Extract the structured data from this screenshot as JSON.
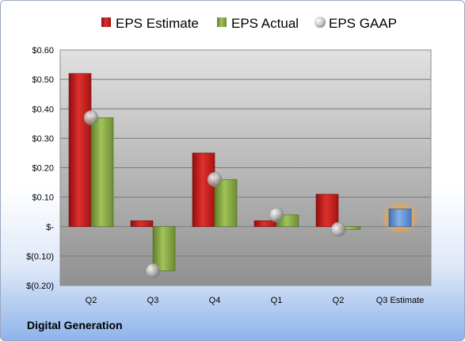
{
  "company_name": "Digital Generation",
  "colors": {
    "estimate": "#cc1f1f",
    "actual": "#8fb24a",
    "gaap": "#bcbcbc",
    "future_estimate": "#6f9bd8",
    "highlight": "#f3a64a"
  },
  "chart_data": {
    "type": "bar",
    "categories": [
      "Q2",
      "Q3",
      "Q4",
      "Q1",
      "Q2",
      "Q3 Estimate"
    ],
    "series": [
      {
        "name": "EPS Estimate",
        "values": [
          0.52,
          0.02,
          0.25,
          0.02,
          0.11,
          0.06
        ]
      },
      {
        "name": "EPS Actual",
        "values": [
          0.37,
          -0.15,
          0.16,
          0.04,
          -0.01,
          null
        ]
      },
      {
        "name": "EPS GAAP",
        "values": [
          0.37,
          -0.15,
          0.16,
          0.04,
          -0.01,
          null
        ]
      }
    ],
    "ylim": [
      -0.2,
      0.6
    ],
    "yticks": [
      0.6,
      0.5,
      0.4,
      0.3,
      0.2,
      0.1,
      0,
      -0.1,
      -0.2
    ],
    "ytick_labels": [
      "$0.60",
      "$0.50",
      "$0.40",
      "$0.30",
      "$0.20",
      "$0.10",
      "$-",
      "$(0.10)",
      "$(0.20)"
    ],
    "legend_position": "top",
    "grid": true
  }
}
